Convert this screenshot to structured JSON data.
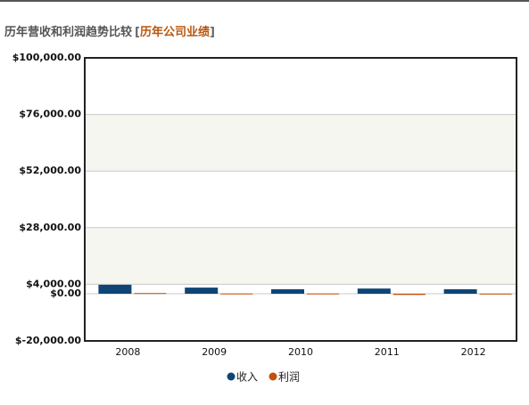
{
  "chart_data": {
    "type": "bar",
    "title": "历年营收和利润趋势比较",
    "title_open": "[",
    "title_link": "历年公司业绩",
    "title_close": "]",
    "categories": [
      "2008",
      "2009",
      "2010",
      "2011",
      "2012"
    ],
    "series": [
      {
        "name": "收入",
        "color": "#0e4576",
        "values": [
          3800,
          2600,
          1900,
          2200,
          1900
        ]
      },
      {
        "name": "利润",
        "color": "#c2500e",
        "values": [
          300,
          100,
          100,
          -500,
          50
        ]
      }
    ],
    "ylim": [
      -20000,
      100000
    ],
    "yticks": [
      {
        "value": -20000,
        "label": "$-20,000.00"
      },
      {
        "value": 0,
        "label": "$0.00"
      },
      {
        "value": 4000,
        "label": "$4,000.00"
      },
      {
        "value": 28000,
        "label": "$28,000.00"
      },
      {
        "value": 52000,
        "label": "$52,000.00"
      },
      {
        "value": 76000,
        "label": "$76,000.00"
      },
      {
        "value": 100000,
        "label": "$100,000.00"
      }
    ],
    "grid": true,
    "legend": "bottom"
  }
}
